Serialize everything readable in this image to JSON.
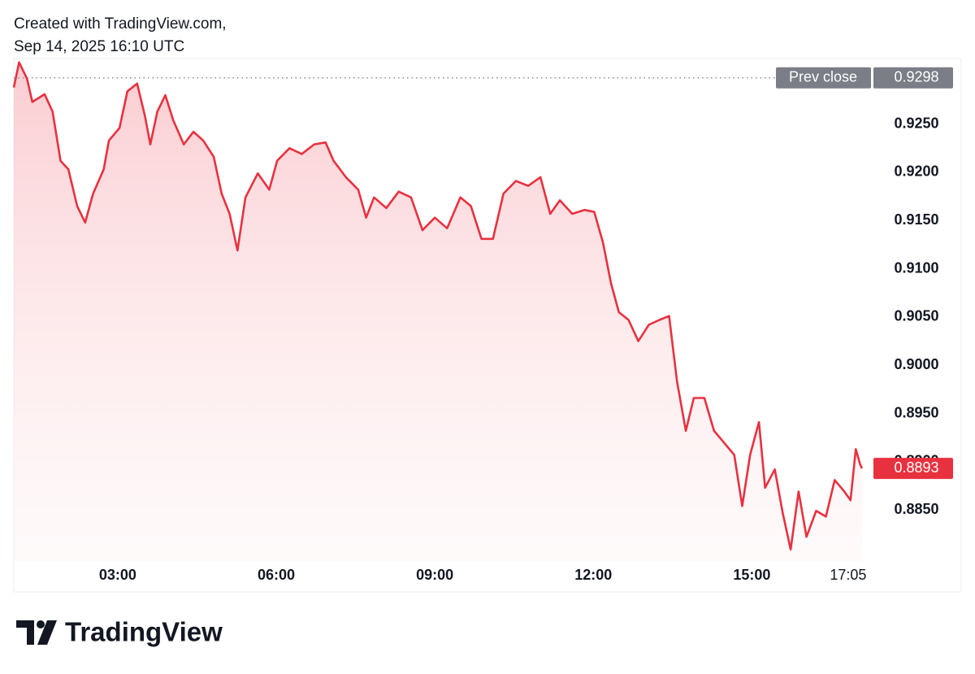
{
  "chart_data": {
    "type": "area",
    "title": "Created with TradingView.com,",
    "subtitle": "Sep 14, 2025 16:10 UTC",
    "logo": "TradingView",
    "color": "#e8313f",
    "x": [
      "01:02",
      "01:08",
      "01:17",
      "01:23",
      "01:37",
      "01:46",
      "01:55",
      "02:04",
      "02:14",
      "02:23",
      "02:32",
      "02:44",
      "02:50",
      "03:02",
      "03:11",
      "03:22",
      "03:31",
      "03:37",
      "03:45",
      "03:54",
      "04:03",
      "04:15",
      "04:26",
      "04:37",
      "04:49",
      "04:58",
      "05:07",
      "05:16",
      "05:25",
      "05:39",
      "05:52",
      "06:01",
      "06:15",
      "06:29",
      "06:43",
      "06:56",
      "07:05",
      "07:19",
      "07:33",
      "07:42",
      "07:51",
      "08:05",
      "08:19",
      "08:33",
      "08:46",
      "09:00",
      "09:14",
      "09:29",
      "09:41",
      "09:53",
      "10:06",
      "10:18",
      "10:32",
      "10:46",
      "11:00",
      "11:11",
      "11:22",
      "11:36",
      "11:50",
      "12:01",
      "12:11",
      "12:20",
      "12:29",
      "12:40",
      "12:51",
      "13:03",
      "13:15",
      "13:26",
      "13:35",
      "13:45",
      "13:54",
      "14:06",
      "14:17",
      "14:29",
      "14:40",
      "14:49",
      "14:58",
      "15:08",
      "15:15",
      "15:26",
      "15:35",
      "15:44",
      "15:53",
      "16:02",
      "16:13",
      "16:24",
      "16:34",
      "16:45",
      "16:52",
      "16:58",
      "17:03",
      "17:05"
    ],
    "values": [
      0.9288,
      0.9314,
      0.9297,
      0.9273,
      0.9281,
      0.9263,
      0.9212,
      0.9203,
      0.9165,
      0.9148,
      0.9178,
      0.9203,
      0.9233,
      0.9246,
      0.9284,
      0.9292,
      0.9258,
      0.9229,
      0.9263,
      0.928,
      0.9254,
      0.9229,
      0.9242,
      0.9233,
      0.9216,
      0.9178,
      0.9157,
      0.9119,
      0.9174,
      0.9199,
      0.9182,
      0.9212,
      0.9225,
      0.9219,
      0.9229,
      0.9231,
      0.9212,
      0.9195,
      0.9182,
      0.9153,
      0.9174,
      0.9163,
      0.918,
      0.9174,
      0.914,
      0.9153,
      0.9142,
      0.9174,
      0.9165,
      0.9131,
      0.9131,
      0.9178,
      0.9191,
      0.9186,
      0.9195,
      0.9157,
      0.9171,
      0.9157,
      0.9161,
      0.9159,
      0.9127,
      0.9085,
      0.9055,
      0.9047,
      0.9025,
      0.9042,
      0.9047,
      0.9051,
      0.8983,
      0.8932,
      0.8966,
      0.8966,
      0.8932,
      0.8919,
      0.8907,
      0.8854,
      0.8907,
      0.8941,
      0.8873,
      0.8892,
      0.8847,
      0.8809,
      0.8869,
      0.8822,
      0.8849,
      0.8843,
      0.8881,
      0.8869,
      0.886,
      0.8913,
      0.8897,
      0.8893
    ],
    "xlim": [
      "01:02",
      "17:18"
    ],
    "xticks": [
      "03:00",
      "06:00",
      "09:00",
      "12:00",
      "15:00",
      "17:05"
    ],
    "ylim": [
      0.8797,
      0.9318
    ],
    "yticks": [
      {
        "value": 0.885,
        "label": "0.8850"
      },
      {
        "value": 0.89,
        "label": "0.8900"
      },
      {
        "value": 0.895,
        "label": "0.8950"
      },
      {
        "value": 0.9,
        "label": "0.9000"
      },
      {
        "value": 0.905,
        "label": "0.9050"
      },
      {
        "value": 0.91,
        "label": "0.9100"
      },
      {
        "value": 0.915,
        "label": "0.9150"
      },
      {
        "value": 0.92,
        "label": "0.9200"
      },
      {
        "value": 0.925,
        "label": "0.9250"
      }
    ],
    "prev_close": {
      "label": "Prev close",
      "value": 0.9298
    },
    "last_price": 0.8893,
    "grid": false
  }
}
